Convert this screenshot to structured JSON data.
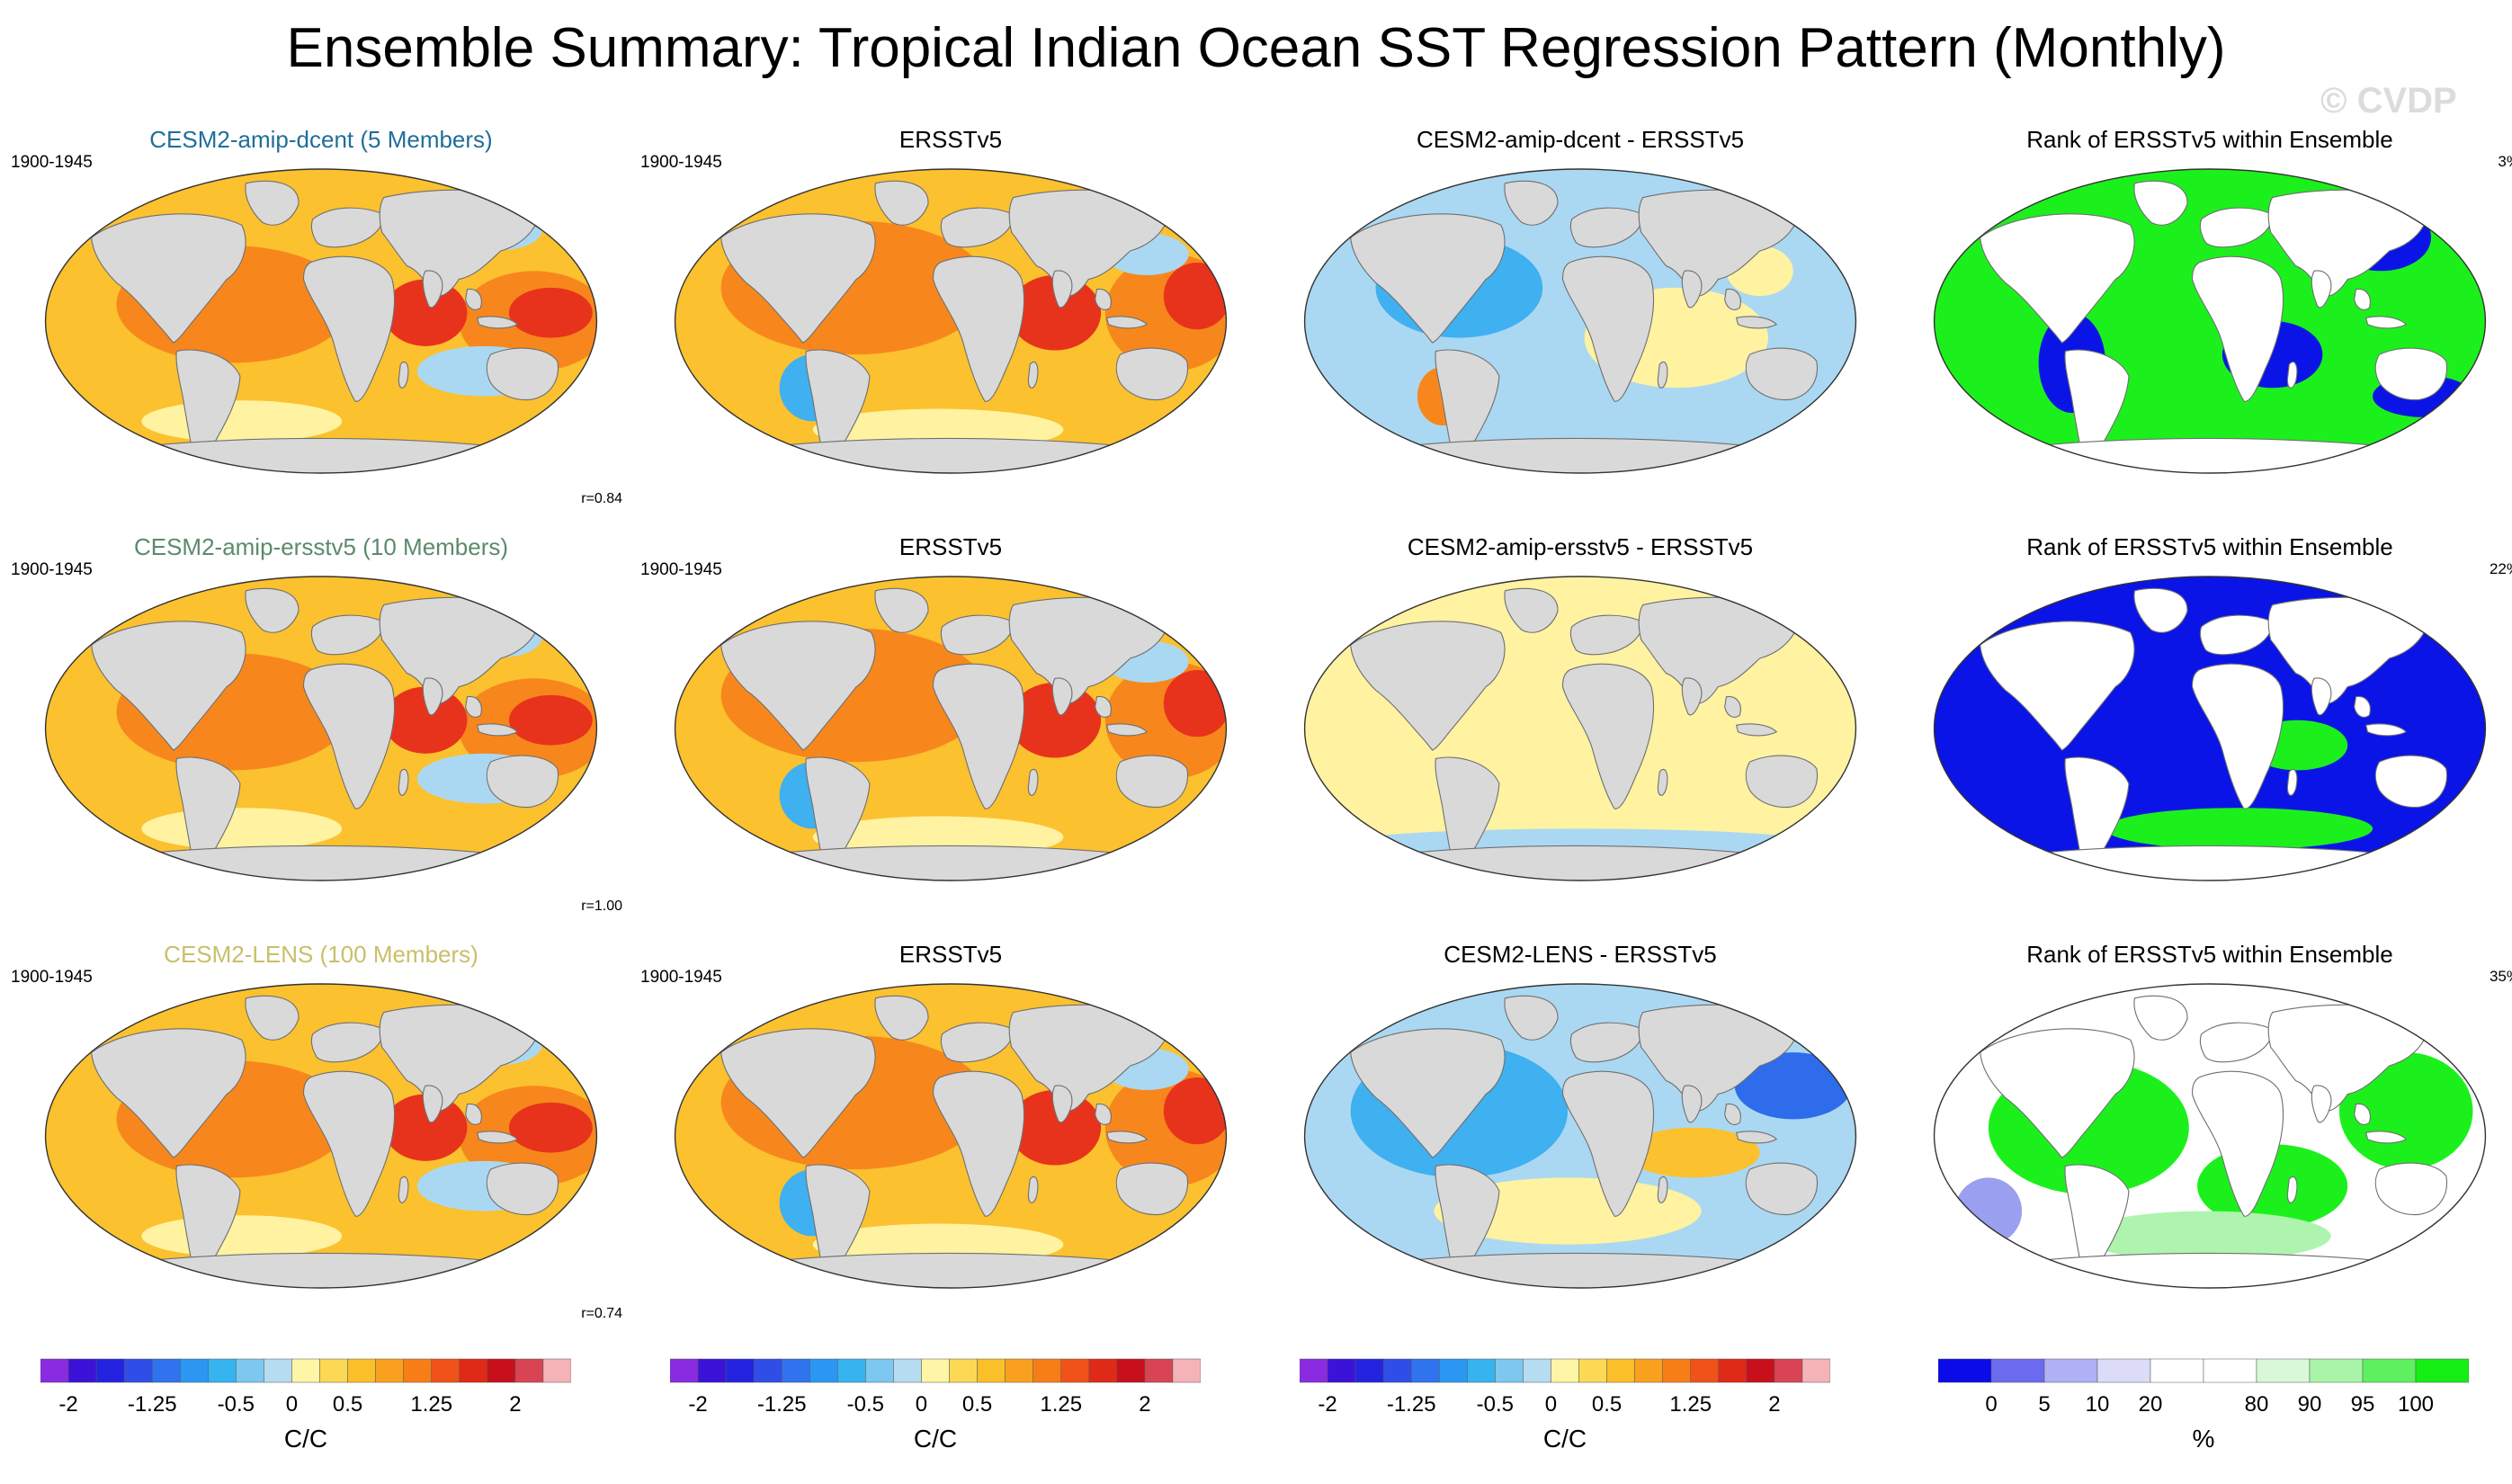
{
  "title": "Ensemble Summary: Tropical Indian Ocean SST Regression Pattern (Monthly)",
  "watermark": "© CVDP",
  "rows": [
    {
      "model_title": "CESM2-amip-dcent (5 Members)",
      "model_color": "#1f6e99",
      "period": "1900-1945",
      "obs_title": "ERSSTv5",
      "obs_period": "1900-1945",
      "diff_title": "CESM2-amip-dcent - ERSSTv5",
      "rank_title": "Rank of ERSSTv5 within Ensemble",
      "rank_pct": "3%",
      "corr": "r=0.84"
    },
    {
      "model_title": "CESM2-amip-ersstv5 (10 Members)",
      "model_color": "#5c8a6b",
      "period": "1900-1945",
      "obs_title": "ERSSTv5",
      "obs_period": "1900-1945",
      "diff_title": "CESM2-amip-ersstv5 - ERSSTv5",
      "rank_title": "Rank of ERSSTv5 within Ensemble",
      "rank_pct": "22%",
      "corr": "r=1.00"
    },
    {
      "model_title": "CESM2-LENS (100 Members)",
      "model_color": "#c9bf6a",
      "period": "1900-1945",
      "obs_title": "ERSSTv5",
      "obs_period": "1900-1945",
      "diff_title": "CESM2-LENS - ERSSTv5",
      "rank_title": "Rank of ERSSTv5 within Ensemble",
      "rank_pct": "35%",
      "corr": "r=0.74"
    }
  ],
  "sst_colorbar": {
    "colors": [
      "#8a2be2",
      "#3a12d8",
      "#2323e0",
      "#2f4ee8",
      "#2f73ef",
      "#2b97f2",
      "#35b4f0",
      "#7cc8f0",
      "#b6dcf2",
      "#fff5a6",
      "#fcd954",
      "#fbbf2a",
      "#f9a11e",
      "#f77e16",
      "#f0521a",
      "#e02a18",
      "#c8101c",
      "#d84454",
      "#f5b3b8"
    ],
    "labels": [
      "-2",
      "-1.25",
      "-0.5",
      "0",
      "0.5",
      "1.25",
      "2"
    ],
    "label_boxes": [
      1,
      4,
      7,
      9,
      11,
      14,
      17
    ],
    "unit": "C/C"
  },
  "rank_colorbar": {
    "colors": [
      "#0b0bea",
      "#6b6bf0",
      "#b0b0f5",
      "#dcdcf8",
      "#ffffff",
      "#ffffff",
      "#d8f8d8",
      "#a8f5a8",
      "#5ff05f",
      "#14ee14"
    ],
    "labels": [
      "0",
      "5",
      "10",
      "20",
      "80",
      "90",
      "95",
      "100"
    ],
    "label_boxes": [
      1,
      2,
      3,
      4,
      6,
      7,
      8,
      9
    ],
    "unit": "%"
  },
  "map_colors": {
    "land": "#d9d9d9",
    "land_stroke": "#707070",
    "warm_strong": "#e8331c",
    "warm_mid": "#f7871c",
    "warm_light": "#fbc12e",
    "warm_pale": "#fff2a1",
    "cool_light": "#aad8f2",
    "cool_mid": "#3fb0f0",
    "cool_strong": "#2e6cec",
    "rank_blue": "#0a14e6",
    "rank_green": "#1cf01c",
    "rank_lightgreen": "#aef4ae",
    "rank_lightblue": "#9a9ff0"
  }
}
